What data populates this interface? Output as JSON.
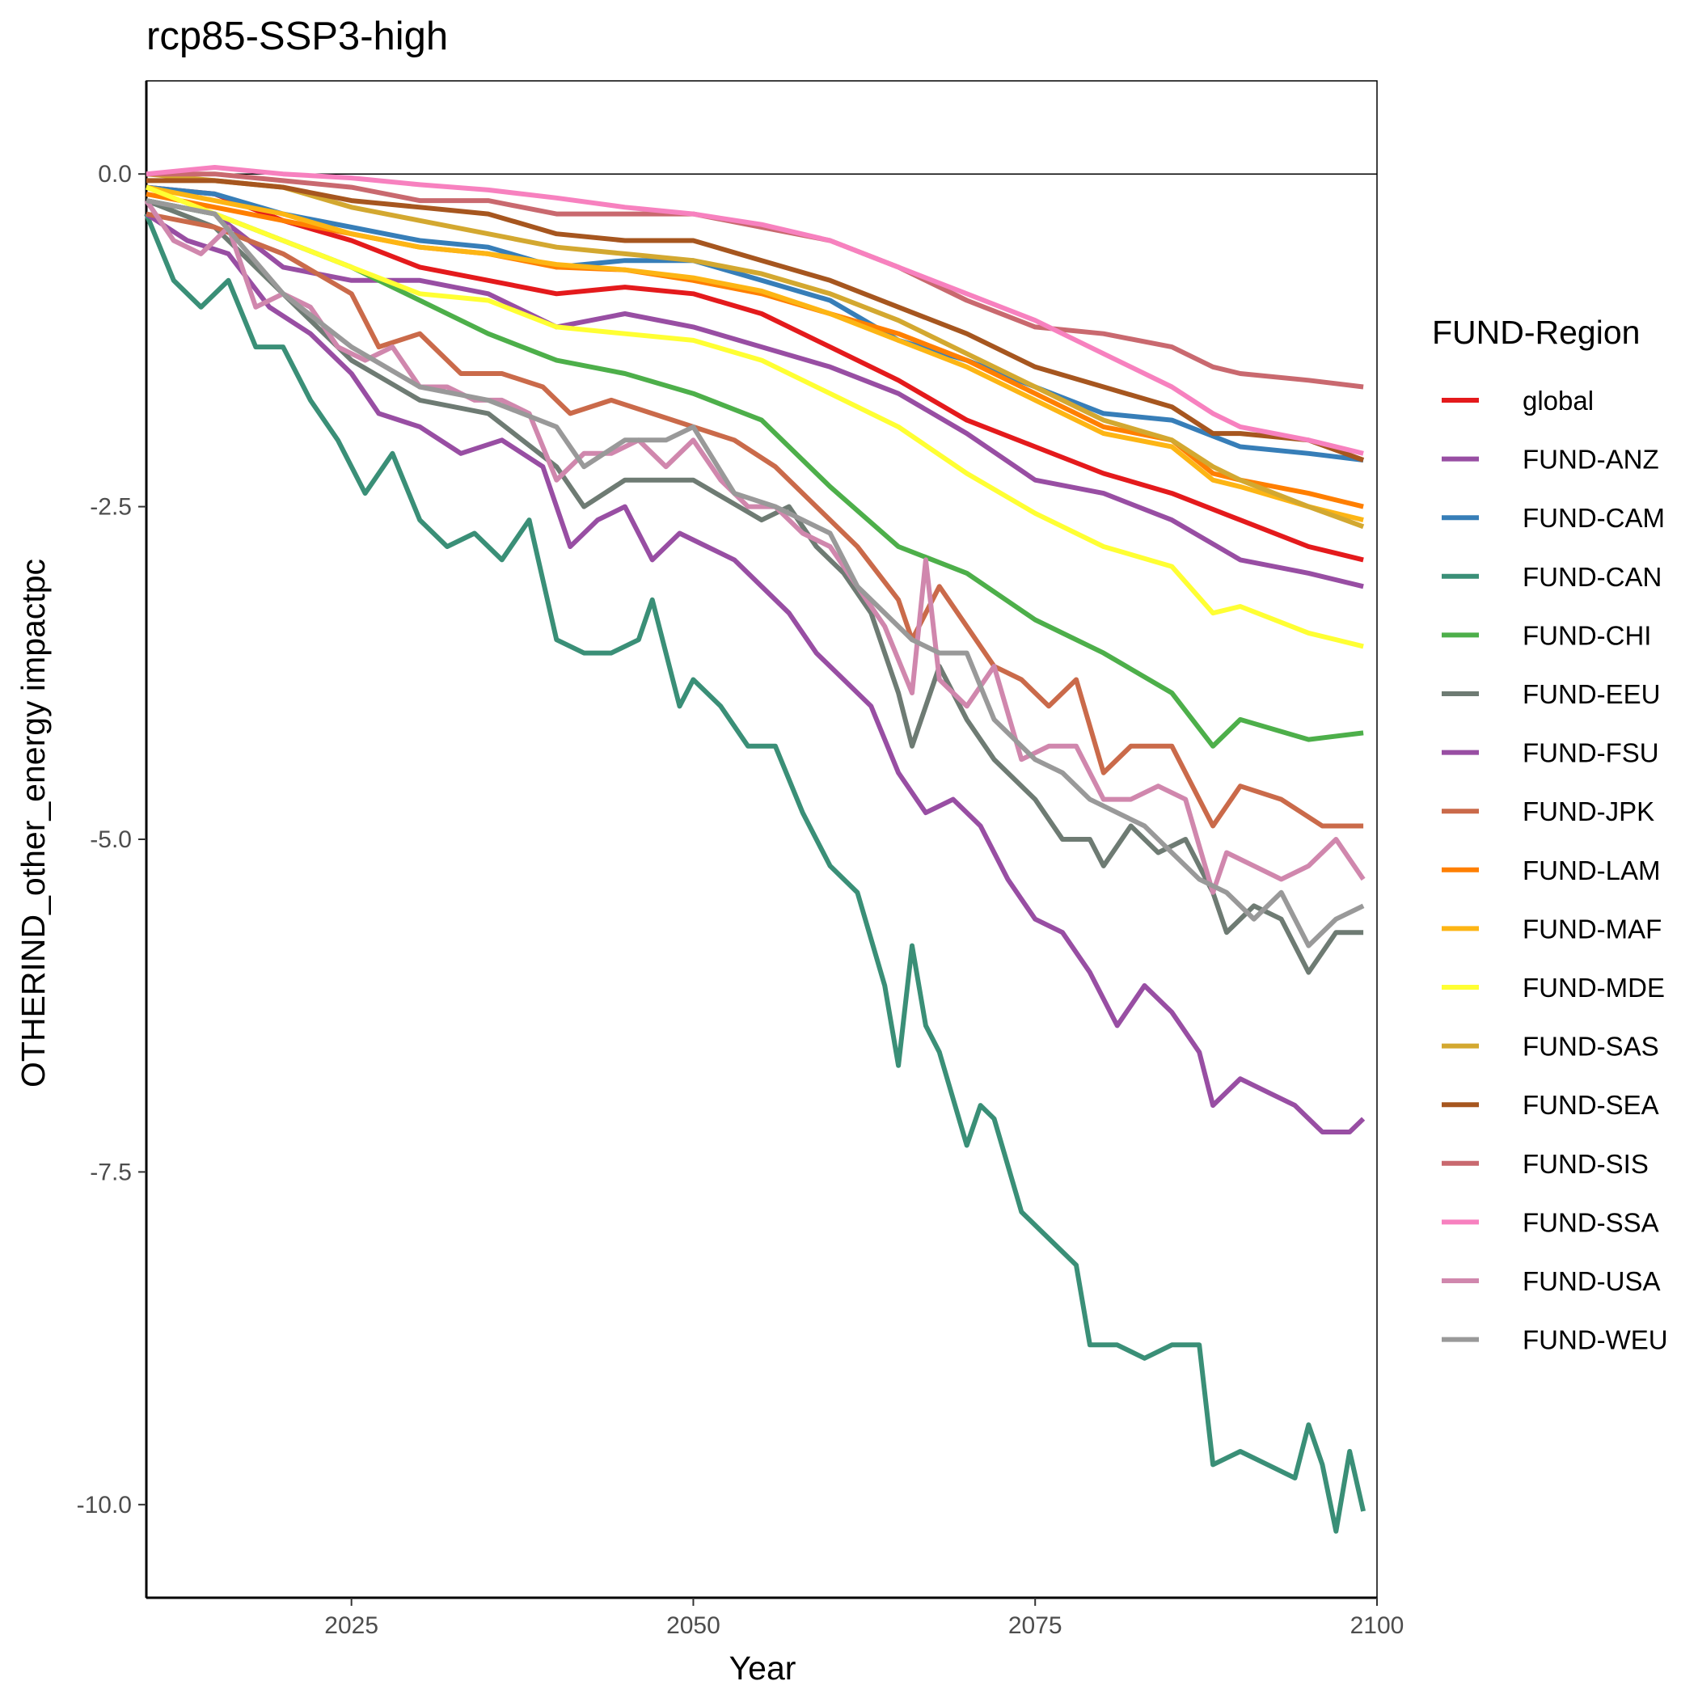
{
  "chart_data": {
    "type": "line",
    "title": "rcp85-SSP3-high",
    "xlabel": "Year",
    "ylabel": "OTHERIND_other_energy impactpc",
    "xlim": [
      2010,
      2100
    ],
    "ylim": [
      -10.7,
      0.7
    ],
    "xticks": [
      2025,
      2050,
      2075,
      2100
    ],
    "yticks": [
      0.0,
      -2.5,
      -5.0,
      -7.5,
      -10.0
    ],
    "xtick_labels": [
      "2025",
      "2050",
      "2075",
      "2100"
    ],
    "ytick_labels": [
      "0.0",
      "-2.5",
      "-5.0",
      "-7.5",
      "-10.0"
    ],
    "hline": 0,
    "grid": false,
    "legend": {
      "title": "FUND-Region",
      "position": "right"
    },
    "series": [
      {
        "name": "global",
        "color": "#E41A1C",
        "x": [
          2010,
          2015,
          2020,
          2025,
          2030,
          2035,
          2040,
          2045,
          2050,
          2055,
          2060,
          2065,
          2070,
          2075,
          2080,
          2085,
          2090,
          2095,
          2099
        ],
        "y": [
          -0.1,
          -0.15,
          -0.35,
          -0.5,
          -0.7,
          -0.8,
          -0.9,
          -0.85,
          -0.9,
          -1.05,
          -1.3,
          -1.55,
          -1.85,
          -2.05,
          -2.25,
          -2.4,
          -2.6,
          -2.8,
          -2.9
        ]
      },
      {
        "name": "FUND-ANZ",
        "color": "#984EA3",
        "x": [
          2010,
          2015,
          2020,
          2025,
          2030,
          2035,
          2040,
          2045,
          2050,
          2055,
          2060,
          2065,
          2070,
          2075,
          2080,
          2085,
          2090,
          2095,
          2099
        ],
        "y": [
          -0.2,
          -0.3,
          -0.7,
          -0.8,
          -0.8,
          -0.9,
          -1.15,
          -1.05,
          -1.15,
          -1.3,
          -1.45,
          -1.65,
          -1.95,
          -2.3,
          -2.4,
          -2.6,
          -2.9,
          -3.0,
          -3.1
        ]
      },
      {
        "name": "FUND-CAM",
        "color": "#377EB8",
        "x": [
          2010,
          2015,
          2020,
          2025,
          2030,
          2035,
          2040,
          2045,
          2050,
          2055,
          2060,
          2065,
          2070,
          2075,
          2080,
          2085,
          2090,
          2095,
          2099
        ],
        "y": [
          -0.1,
          -0.15,
          -0.3,
          -0.4,
          -0.5,
          -0.55,
          -0.7,
          -0.65,
          -0.65,
          -0.8,
          -0.95,
          -1.25,
          -1.4,
          -1.6,
          -1.8,
          -1.85,
          -2.05,
          -2.1,
          -2.15
        ]
      },
      {
        "name": "FUND-CAN",
        "color": "#3A8F77",
        "x": [
          2010,
          2012,
          2014,
          2016,
          2018,
          2020,
          2022,
          2024,
          2026,
          2028,
          2030,
          2032,
          2034,
          2036,
          2038,
          2040,
          2042,
          2044,
          2046,
          2047,
          2049,
          2050,
          2052,
          2054,
          2056,
          2058,
          2060,
          2062,
          2064,
          2065,
          2066,
          2067,
          2068,
          2070,
          2071,
          2072,
          2074,
          2076,
          2078,
          2079,
          2081,
          2083,
          2085,
          2087,
          2088,
          2090,
          2092,
          2094,
          2095,
          2096,
          2097,
          2098,
          2099
        ],
        "y": [
          -0.3,
          -0.8,
          -1.0,
          -0.8,
          -1.3,
          -1.3,
          -1.7,
          -2.0,
          -2.4,
          -2.1,
          -2.6,
          -2.8,
          -2.7,
          -2.9,
          -2.6,
          -3.5,
          -3.6,
          -3.6,
          -3.5,
          -3.2,
          -4.0,
          -3.8,
          -4.0,
          -4.3,
          -4.3,
          -4.8,
          -5.2,
          -5.4,
          -6.1,
          -6.7,
          -5.8,
          -6.4,
          -6.6,
          -7.3,
          -7.0,
          -7.1,
          -7.8,
          -8.0,
          -8.2,
          -8.8,
          -8.8,
          -8.9,
          -8.8,
          -8.8,
          -9.7,
          -9.6,
          -9.7,
          -9.8,
          -9.4,
          -9.7,
          -10.2,
          -9.6,
          -10.05
        ]
      },
      {
        "name": "FUND-CHI",
        "color": "#4DAF4A",
        "x": [
          2010,
          2015,
          2020,
          2025,
          2030,
          2035,
          2040,
          2045,
          2050,
          2055,
          2060,
          2065,
          2070,
          2075,
          2080,
          2085,
          2088,
          2090,
          2095,
          2099
        ],
        "y": [
          -0.2,
          -0.3,
          -0.5,
          -0.7,
          -0.95,
          -1.2,
          -1.4,
          -1.5,
          -1.65,
          -1.85,
          -2.35,
          -2.8,
          -3.0,
          -3.35,
          -3.6,
          -3.9,
          -4.3,
          -4.1,
          -4.25,
          -4.2
        ]
      },
      {
        "name": "FUND-EEU",
        "color": "#6E7B73",
        "x": [
          2010,
          2015,
          2020,
          2025,
          2030,
          2035,
          2040,
          2042,
          2045,
          2050,
          2055,
          2057,
          2059,
          2061,
          2063,
          2065,
          2066,
          2068,
          2070,
          2072,
          2075,
          2077,
          2079,
          2080,
          2082,
          2084,
          2086,
          2088,
          2089,
          2091,
          2093,
          2095,
          2097,
          2099
        ],
        "y": [
          -0.2,
          -0.4,
          -0.9,
          -1.4,
          -1.7,
          -1.8,
          -2.2,
          -2.5,
          -2.3,
          -2.3,
          -2.6,
          -2.5,
          -2.8,
          -3.0,
          -3.3,
          -3.9,
          -4.3,
          -3.7,
          -4.1,
          -4.4,
          -4.7,
          -5.0,
          -5.0,
          -5.2,
          -4.9,
          -5.1,
          -5.0,
          -5.4,
          -5.7,
          -5.5,
          -5.6,
          -6.0,
          -5.7,
          -5.7
        ]
      },
      {
        "name": "FUND-FSU",
        "color": "#984EA3",
        "x": [
          2010,
          2013,
          2016,
          2019,
          2022,
          2025,
          2027,
          2030,
          2033,
          2036,
          2039,
          2041,
          2043,
          2045,
          2047,
          2049,
          2051,
          2053,
          2055,
          2057,
          2059,
          2061,
          2063,
          2065,
          2067,
          2069,
          2071,
          2073,
          2075,
          2077,
          2079,
          2081,
          2083,
          2085,
          2087,
          2088,
          2090,
          2092,
          2094,
          2096,
          2098,
          2099
        ],
        "y": [
          -0.3,
          -0.5,
          -0.6,
          -1.0,
          -1.2,
          -1.5,
          -1.8,
          -1.9,
          -2.1,
          -2.0,
          -2.2,
          -2.8,
          -2.6,
          -2.5,
          -2.9,
          -2.7,
          -2.8,
          -2.9,
          -3.1,
          -3.3,
          -3.6,
          -3.8,
          -4.0,
          -4.5,
          -4.8,
          -4.7,
          -4.9,
          -5.3,
          -5.6,
          -5.7,
          -6.0,
          -6.4,
          -6.1,
          -6.3,
          -6.6,
          -7.0,
          -6.8,
          -6.9,
          -7.0,
          -7.2,
          -7.2,
          -7.1
        ]
      },
      {
        "name": "FUND-JPK",
        "color": "#CA6A4A",
        "x": [
          2010,
          2015,
          2020,
          2025,
          2027,
          2030,
          2033,
          2036,
          2039,
          2041,
          2044,
          2047,
          2050,
          2053,
          2056,
          2059,
          2062,
          2065,
          2066,
          2068,
          2070,
          2072,
          2074,
          2076,
          2078,
          2080,
          2082,
          2085,
          2088,
          2090,
          2093,
          2096,
          2099
        ],
        "y": [
          -0.3,
          -0.4,
          -0.6,
          -0.9,
          -1.3,
          -1.2,
          -1.5,
          -1.5,
          -1.6,
          -1.8,
          -1.7,
          -1.8,
          -1.9,
          -2.0,
          -2.2,
          -2.5,
          -2.8,
          -3.2,
          -3.5,
          -3.1,
          -3.4,
          -3.7,
          -3.8,
          -4.0,
          -3.8,
          -4.5,
          -4.3,
          -4.3,
          -4.9,
          -4.6,
          -4.7,
          -4.9,
          -4.9
        ]
      },
      {
        "name": "FUND-LAM",
        "color": "#FF7F00",
        "x": [
          2010,
          2015,
          2020,
          2025,
          2030,
          2035,
          2040,
          2045,
          2050,
          2055,
          2060,
          2065,
          2070,
          2075,
          2080,
          2085,
          2088,
          2090,
          2095,
          2099
        ],
        "y": [
          -0.15,
          -0.25,
          -0.35,
          -0.45,
          -0.55,
          -0.6,
          -0.7,
          -0.72,
          -0.8,
          -0.9,
          -1.05,
          -1.2,
          -1.4,
          -1.65,
          -1.9,
          -2.0,
          -2.25,
          -2.3,
          -2.4,
          -2.5
        ]
      },
      {
        "name": "FUND-MAF",
        "color": "#FDB514",
        "x": [
          2010,
          2015,
          2020,
          2025,
          2030,
          2035,
          2040,
          2045,
          2050,
          2055,
          2060,
          2065,
          2070,
          2075,
          2080,
          2085,
          2088,
          2090,
          2095,
          2099
        ],
        "y": [
          -0.1,
          -0.2,
          -0.3,
          -0.45,
          -0.55,
          -0.6,
          -0.68,
          -0.72,
          -0.78,
          -0.88,
          -1.05,
          -1.25,
          -1.45,
          -1.7,
          -1.95,
          -2.05,
          -2.3,
          -2.35,
          -2.5,
          -2.6
        ]
      },
      {
        "name": "FUND-MDE",
        "color": "#FFFF33",
        "x": [
          2010,
          2015,
          2020,
          2025,
          2030,
          2035,
          2040,
          2045,
          2050,
          2055,
          2060,
          2065,
          2070,
          2075,
          2080,
          2085,
          2088,
          2090,
          2095,
          2099
        ],
        "y": [
          -0.1,
          -0.3,
          -0.5,
          -0.7,
          -0.9,
          -0.95,
          -1.15,
          -1.2,
          -1.25,
          -1.4,
          -1.65,
          -1.9,
          -2.25,
          -2.55,
          -2.8,
          -2.95,
          -3.3,
          -3.25,
          -3.45,
          -3.55
        ]
      },
      {
        "name": "FUND-SAS",
        "color": "#D3A830",
        "x": [
          2010,
          2015,
          2020,
          2025,
          2030,
          2035,
          2040,
          2045,
          2050,
          2055,
          2060,
          2065,
          2070,
          2075,
          2080,
          2085,
          2088,
          2090,
          2095,
          2099
        ],
        "y": [
          0.0,
          -0.05,
          -0.1,
          -0.25,
          -0.35,
          -0.45,
          -0.55,
          -0.6,
          -0.65,
          -0.75,
          -0.9,
          -1.1,
          -1.35,
          -1.6,
          -1.85,
          -2.0,
          -2.2,
          -2.3,
          -2.5,
          -2.65
        ]
      },
      {
        "name": "FUND-SEA",
        "color": "#A6561F",
        "x": [
          2010,
          2015,
          2020,
          2025,
          2030,
          2035,
          2040,
          2045,
          2050,
          2055,
          2060,
          2065,
          2070,
          2075,
          2080,
          2085,
          2088,
          2090,
          2095,
          2099
        ],
        "y": [
          -0.05,
          -0.05,
          -0.1,
          -0.2,
          -0.25,
          -0.3,
          -0.45,
          -0.5,
          -0.5,
          -0.65,
          -0.8,
          -1.0,
          -1.2,
          -1.45,
          -1.6,
          -1.75,
          -1.95,
          -1.95,
          -2.0,
          -2.15
        ]
      },
      {
        "name": "FUND-SIS",
        "color": "#C9696F",
        "x": [
          2010,
          2015,
          2020,
          2025,
          2030,
          2035,
          2040,
          2045,
          2050,
          2055,
          2060,
          2065,
          2070,
          2075,
          2080,
          2085,
          2088,
          2090,
          2095,
          2099
        ],
        "y": [
          0.0,
          0.0,
          -0.05,
          -0.1,
          -0.2,
          -0.2,
          -0.3,
          -0.3,
          -0.3,
          -0.4,
          -0.5,
          -0.7,
          -0.95,
          -1.15,
          -1.2,
          -1.3,
          -1.45,
          -1.5,
          -1.55,
          -1.6
        ]
      },
      {
        "name": "FUND-SSA",
        "color": "#F781BF",
        "x": [
          2010,
          2015,
          2020,
          2025,
          2030,
          2035,
          2040,
          2045,
          2050,
          2055,
          2060,
          2065,
          2070,
          2075,
          2080,
          2085,
          2088,
          2090,
          2095,
          2099
        ],
        "y": [
          0.0,
          0.05,
          0.0,
          -0.03,
          -0.08,
          -0.12,
          -0.18,
          -0.25,
          -0.3,
          -0.38,
          -0.5,
          -0.7,
          -0.9,
          -1.1,
          -1.35,
          -1.6,
          -1.8,
          -1.9,
          -2.0,
          -2.1
        ]
      },
      {
        "name": "FUND-USA",
        "color": "#D087AD",
        "x": [
          2010,
          2012,
          2014,
          2016,
          2018,
          2020,
          2022,
          2024,
          2026,
          2028,
          2030,
          2032,
          2034,
          2036,
          2038,
          2040,
          2042,
          2044,
          2046,
          2048,
          2050,
          2052,
          2054,
          2056,
          2058,
          2060,
          2062,
          2064,
          2066,
          2067,
          2068,
          2070,
          2072,
          2074,
          2076,
          2078,
          2080,
          2082,
          2084,
          2086,
          2088,
          2089,
          2091,
          2093,
          2095,
          2097,
          2099
        ],
        "y": [
          -0.2,
          -0.5,
          -0.6,
          -0.4,
          -1.0,
          -0.9,
          -1.0,
          -1.3,
          -1.4,
          -1.3,
          -1.6,
          -1.6,
          -1.7,
          -1.7,
          -1.8,
          -2.3,
          -2.1,
          -2.1,
          -2.0,
          -2.2,
          -2.0,
          -2.3,
          -2.5,
          -2.5,
          -2.7,
          -2.8,
          -3.1,
          -3.4,
          -3.9,
          -2.9,
          -3.8,
          -4.0,
          -3.7,
          -4.4,
          -4.3,
          -4.3,
          -4.7,
          -4.7,
          -4.6,
          -4.7,
          -5.4,
          -5.1,
          -5.2,
          -5.3,
          -5.2,
          -5.0,
          -5.3
        ]
      },
      {
        "name": "FUND-WEU",
        "color": "#999999",
        "x": [
          2010,
          2015,
          2020,
          2025,
          2030,
          2035,
          2040,
          2042,
          2045,
          2048,
          2050,
          2053,
          2056,
          2058,
          2060,
          2062,
          2064,
          2066,
          2068,
          2070,
          2072,
          2075,
          2077,
          2079,
          2081,
          2083,
          2085,
          2087,
          2089,
          2091,
          2093,
          2095,
          2097,
          2099
        ],
        "y": [
          -0.2,
          -0.3,
          -0.9,
          -1.3,
          -1.6,
          -1.7,
          -1.9,
          -2.2,
          -2.0,
          -2.0,
          -1.9,
          -2.4,
          -2.5,
          -2.6,
          -2.7,
          -3.1,
          -3.3,
          -3.5,
          -3.6,
          -3.6,
          -4.1,
          -4.4,
          -4.5,
          -4.7,
          -4.8,
          -4.9,
          -5.1,
          -5.3,
          -5.4,
          -5.6,
          -5.4,
          -5.8,
          -5.6,
          -5.5
        ]
      }
    ]
  }
}
